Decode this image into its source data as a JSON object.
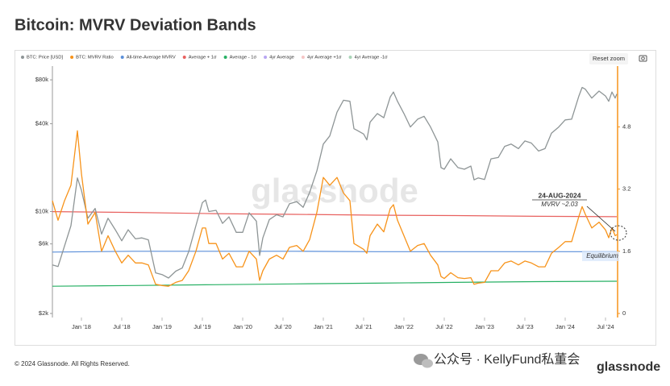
{
  "page_title": "Bitcoin: MVRV Deviation Bands",
  "footer": "© 2024 Glassnode. All Rights Reserved.",
  "watermark": "glassnode",
  "logo": "glassnode",
  "wechat": "公众号 · KellyFund私董会",
  "reset_zoom": "Reset zoom",
  "chart_data": {
    "type": "line",
    "log_y": true,
    "grid": false,
    "xlim": [
      2017.64,
      2024.64
    ],
    "xticks": [
      {
        "value": 2018,
        "label": "Jan '18"
      },
      {
        "value": 2018.5,
        "label": "Jul '18"
      },
      {
        "value": 2019,
        "label": "Jan '19"
      },
      {
        "value": 2019.5,
        "label": "Jul '19"
      },
      {
        "value": 2020,
        "label": "Jan '20"
      },
      {
        "value": 2020.5,
        "label": "Jul '20"
      },
      {
        "value": 2021,
        "label": "Jan '21"
      },
      {
        "value": 2021.5,
        "label": "Jul '21"
      },
      {
        "value": 2022,
        "label": "Jan '22"
      },
      {
        "value": 2022.5,
        "label": "Jul '22"
      },
      {
        "value": 2023,
        "label": "Jan '23"
      },
      {
        "value": 2023.5,
        "label": "Jul '23"
      },
      {
        "value": 2024,
        "label": "Jan '24"
      },
      {
        "value": 2024.5,
        "label": "Jul '24"
      }
    ],
    "ylim": [
      2000,
      89800
    ],
    "yticks": [
      {
        "value": 2000,
        "label": "$2k"
      },
      {
        "value": 6000,
        "label": "$6k"
      },
      {
        "value": 10000,
        "label": "$10k"
      },
      {
        "value": 40000,
        "label": "$40k"
      },
      {
        "value": 80000,
        "label": "$80k"
      }
    ],
    "y2lim": [
      0,
      6.2
    ],
    "y2ticks": [
      0,
      1.6,
      3.2,
      4.8
    ],
    "x": [
      2017.64,
      2017.71,
      2017.79,
      2017.87,
      2017.95,
      2018.0,
      2018.08,
      2018.17,
      2018.25,
      2018.33,
      2018.42,
      2018.5,
      2018.58,
      2018.67,
      2018.75,
      2018.83,
      2018.92,
      2019.0,
      2019.08,
      2019.17,
      2019.25,
      2019.33,
      2019.42,
      2019.5,
      2019.54,
      2019.58,
      2019.67,
      2019.75,
      2019.83,
      2019.92,
      2020.0,
      2020.08,
      2020.17,
      2020.21,
      2020.25,
      2020.33,
      2020.42,
      2020.5,
      2020.58,
      2020.67,
      2020.75,
      2020.83,
      2020.92,
      2021.0,
      2021.08,
      2021.17,
      2021.25,
      2021.33,
      2021.38,
      2021.42,
      2021.5,
      2021.54,
      2021.58,
      2021.67,
      2021.75,
      2021.83,
      2021.87,
      2021.92,
      2022.0,
      2022.08,
      2022.17,
      2022.25,
      2022.33,
      2022.42,
      2022.46,
      2022.5,
      2022.58,
      2022.67,
      2022.75,
      2022.83,
      2022.87,
      2022.92,
      2023.0,
      2023.08,
      2023.17,
      2023.25,
      2023.33,
      2023.42,
      2023.5,
      2023.58,
      2023.67,
      2023.75,
      2023.83,
      2023.92,
      2024.0,
      2024.08,
      2024.17,
      2024.21,
      2024.25,
      2024.33,
      2024.42,
      2024.5,
      2024.54,
      2024.58,
      2024.62,
      2024.64
    ],
    "series": [
      {
        "name": "BTC: Price [USD]",
        "color": "#8e9596",
        "values": [
          4300,
          4200,
          5800,
          8000,
          17000,
          14000,
          9000,
          10500,
          7000,
          9000,
          7500,
          6300,
          7500,
          6500,
          6600,
          6400,
          3800,
          3700,
          3500,
          3900,
          4100,
          5300,
          8000,
          11500,
          12000,
          10000,
          10200,
          8300,
          9200,
          7200,
          7200,
          9800,
          8600,
          5000,
          6600,
          8800,
          9500,
          9200,
          11300,
          11700,
          10700,
          13500,
          19000,
          29000,
          33000,
          48000,
          58000,
          57000,
          37000,
          36000,
          34000,
          31000,
          41000,
          47000,
          44000,
          61000,
          66000,
          57000,
          47000,
          38000,
          43000,
          45000,
          38000,
          30000,
          20000,
          19500,
          23000,
          20000,
          19500,
          20500,
          16500,
          17000,
          16600,
          23000,
          23500,
          28000,
          29000,
          27000,
          30500,
          29500,
          26000,
          27000,
          34500,
          38000,
          42500,
          43000,
          62000,
          71000,
          69000,
          60000,
          67000,
          62000,
          57000,
          66000,
          60000,
          64000
        ]
      },
      {
        "name": "BTC: MVRV Ratio",
        "color": "#f7931a",
        "axis": "y2",
        "values": [
          2.9,
          2.4,
          2.9,
          3.3,
          4.7,
          3.6,
          2.3,
          2.6,
          1.6,
          2.0,
          1.6,
          1.3,
          1.5,
          1.3,
          1.3,
          1.25,
          0.75,
          0.72,
          0.7,
          0.8,
          0.85,
          1.1,
          1.6,
          2.2,
          2.2,
          1.8,
          1.8,
          1.4,
          1.55,
          1.2,
          1.2,
          1.6,
          1.4,
          0.85,
          1.1,
          1.4,
          1.5,
          1.4,
          1.7,
          1.75,
          1.6,
          1.9,
          2.6,
          3.5,
          3.3,
          3.5,
          3.1,
          2.9,
          1.8,
          1.75,
          1.65,
          1.55,
          2.0,
          2.3,
          2.1,
          2.7,
          2.8,
          2.4,
          2.0,
          1.6,
          1.75,
          1.8,
          1.5,
          1.25,
          0.95,
          0.9,
          1.05,
          0.92,
          0.9,
          0.92,
          0.75,
          0.78,
          0.8,
          1.1,
          1.1,
          1.3,
          1.35,
          1.25,
          1.35,
          1.3,
          1.2,
          1.2,
          1.55,
          1.7,
          1.85,
          1.85,
          2.5,
          2.75,
          2.55,
          2.2,
          2.35,
          2.15,
          1.95,
          2.2,
          2.0,
          2.03
        ]
      },
      {
        "name": "All-time-Average MVRV",
        "color": "#5b8fd9",
        "axis": "y2",
        "x": [
          2017.64,
          2018.64,
          2019.64,
          2020.64,
          2021.64,
          2022.64,
          2023.64,
          2024.64
        ],
        "values": [
          1.58,
          1.6,
          1.6,
          1.6,
          1.59,
          1.59,
          1.59,
          1.59
        ]
      },
      {
        "name": "Average + 1σ",
        "color": "#e8615f",
        "axis": "y2",
        "x": [
          2017.64,
          2018.64,
          2019.64,
          2020.64,
          2021.64,
          2022.64,
          2023.64,
          2024.64
        ],
        "values": [
          2.62,
          2.6,
          2.57,
          2.55,
          2.53,
          2.52,
          2.5,
          2.49
        ]
      },
      {
        "name": "Average - 1σ",
        "color": "#27b064",
        "axis": "y2",
        "x": [
          2017.64,
          2018.64,
          2019.64,
          2020.64,
          2021.64,
          2022.64,
          2023.64,
          2024.64
        ],
        "values": [
          0.7,
          0.72,
          0.74,
          0.76,
          0.78,
          0.8,
          0.82,
          0.83
        ]
      }
    ],
    "inactive_legend": [
      {
        "name": "4yr Average",
        "color": "#a690ef"
      },
      {
        "name": "4yr Average +1σ",
        "color": "#f2b6b6"
      },
      {
        "name": "4yr Average -1σ",
        "color": "#93c9a5"
      }
    ],
    "annotations": {
      "date": "24-AUG-2024",
      "mvrv": "MVRV ~2.03",
      "equilibrium": "Equilibrium"
    }
  }
}
